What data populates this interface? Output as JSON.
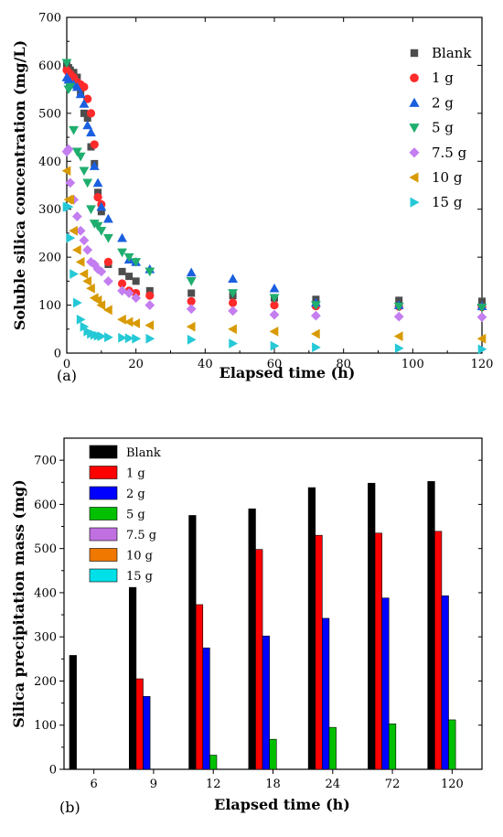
{
  "chart_data": [
    {
      "type": "scatter",
      "panel_label": "(a)",
      "xlabel": "Elapsed time (h)",
      "ylabel": "Soluble silica concentration (mg/L)",
      "xlim": [
        0,
        120
      ],
      "ylim": [
        0,
        700
      ],
      "xticks": [
        0,
        20,
        40,
        60,
        80,
        100,
        120
      ],
      "yticks": [
        0,
        100,
        200,
        300,
        400,
        500,
        600,
        700
      ],
      "legend_position": "top-right",
      "series": [
        {
          "name": "Blank",
          "marker": "square",
          "color": "#4d4d4d",
          "x": [
            0,
            0.5,
            1,
            2,
            3,
            4,
            5,
            6,
            7,
            8,
            9,
            10,
            12,
            16,
            18,
            20,
            24,
            36,
            48,
            60,
            72,
            96,
            120
          ],
          "y": [
            600,
            595,
            590,
            585,
            575,
            540,
            500,
            490,
            430,
            395,
            335,
            295,
            185,
            170,
            160,
            150,
            130,
            125,
            120,
            115,
            112,
            110,
            108
          ]
        },
        {
          "name": "1 g",
          "marker": "circle",
          "color": "#ff2a2a",
          "x": [
            0,
            0.5,
            1,
            2,
            3,
            4,
            5,
            6,
            7,
            8,
            9,
            10,
            12,
            16,
            18,
            20,
            24,
            36,
            48,
            60,
            72,
            96,
            120
          ],
          "y": [
            590,
            585,
            582,
            575,
            565,
            560,
            555,
            530,
            500,
            435,
            325,
            310,
            190,
            145,
            130,
            125,
            120,
            108,
            105,
            100,
            98,
            97,
            96
          ]
        },
        {
          "name": "2 g",
          "marker": "triangle-up",
          "color": "#1a5fe0",
          "x": [
            0,
            0.5,
            1,
            2,
            3,
            4,
            5,
            6,
            7,
            8,
            9,
            10,
            12,
            16,
            18,
            20,
            24,
            36,
            48,
            60,
            72,
            96,
            120
          ],
          "y": [
            575,
            570,
            565,
            560,
            555,
            540,
            520,
            475,
            460,
            390,
            355,
            305,
            280,
            240,
            195,
            190,
            175,
            168,
            155,
            135,
            105,
            100,
            98
          ]
        },
        {
          "name": "5 g",
          "marker": "triangle-down",
          "color": "#1fae6e",
          "x": [
            0,
            0.5,
            1,
            2,
            3,
            4,
            5,
            6,
            7,
            8,
            9,
            10,
            12,
            16,
            18,
            20,
            24,
            36,
            48,
            60,
            72,
            96,
            120
          ],
          "y": [
            605,
            550,
            555,
            465,
            420,
            410,
            380,
            355,
            300,
            270,
            265,
            255,
            240,
            210,
            200,
            190,
            170,
            150,
            125,
            115,
            100,
            97,
            95
          ]
        },
        {
          "name": "7.5 g",
          "marker": "diamond",
          "color": "#c47ef0",
          "x": [
            0,
            0.5,
            1,
            2,
            3,
            4,
            5,
            6,
            7,
            8,
            9,
            10,
            12,
            16,
            18,
            20,
            24,
            36,
            48,
            60,
            72,
            96,
            120
          ],
          "y": [
            420,
            425,
            355,
            320,
            285,
            255,
            235,
            215,
            190,
            185,
            175,
            170,
            150,
            130,
            125,
            115,
            100,
            92,
            88,
            80,
            78,
            76,
            75
          ]
        },
        {
          "name": "10 g",
          "marker": "triangle-left",
          "color": "#d89a00",
          "x": [
            0,
            0.5,
            1,
            2,
            3,
            4,
            5,
            6,
            7,
            8,
            9,
            10,
            12,
            16,
            18,
            20,
            24,
            36,
            48,
            60,
            72,
            96,
            120
          ],
          "y": [
            380,
            320,
            320,
            255,
            215,
            190,
            165,
            150,
            135,
            115,
            110,
            100,
            90,
            70,
            65,
            62,
            58,
            55,
            50,
            45,
            40,
            35,
            30
          ]
        },
        {
          "name": "15 g",
          "marker": "triangle-right",
          "color": "#25c9d6",
          "x": [
            0,
            0.5,
            1,
            2,
            3,
            4,
            5,
            6,
            7,
            8,
            9,
            10,
            12,
            16,
            18,
            20,
            24,
            36,
            48,
            60,
            72,
            96,
            120
          ],
          "y": [
            305,
            305,
            240,
            165,
            105,
            70,
            55,
            45,
            40,
            38,
            36,
            35,
            33,
            32,
            31,
            30,
            30,
            28,
            20,
            15,
            12,
            10,
            8
          ]
        }
      ]
    },
    {
      "type": "bar",
      "panel_label": "(b)",
      "xlabel": "Elapsed time (h)",
      "ylabel": "Silica precipitation mass (mg)",
      "ylim": [
        0,
        750
      ],
      "yticks": [
        0,
        100,
        200,
        300,
        400,
        500,
        600,
        700
      ],
      "categories": [
        "6",
        "9",
        "12",
        "18",
        "24",
        "72",
        "120"
      ],
      "legend_position": "top-left",
      "series": [
        {
          "name": "Blank",
          "color": "#000000",
          "values": [
            258,
            412,
            575,
            590,
            638,
            648,
            652
          ]
        },
        {
          "name": "1 g",
          "color": "#ff0000",
          "values": [
            0,
            205,
            373,
            498,
            530,
            535,
            539
          ]
        },
        {
          "name": "2 g",
          "color": "#0000ff",
          "values": [
            0,
            165,
            275,
            302,
            342,
            388,
            393
          ]
        },
        {
          "name": "5 g",
          "color": "#00c000",
          "values": [
            0,
            0,
            32,
            68,
            95,
            103,
            112
          ]
        },
        {
          "name": "7.5 g",
          "color": "#c070e0",
          "values": [
            0,
            0,
            0,
            0,
            0,
            0,
            0
          ]
        },
        {
          "name": "10 g",
          "color": "#f07800",
          "values": [
            0,
            0,
            0,
            0,
            0,
            0,
            0
          ]
        },
        {
          "name": "15 g",
          "color": "#00e0e8",
          "values": [
            0,
            0,
            0,
            0,
            0,
            0,
            0
          ]
        }
      ]
    }
  ]
}
